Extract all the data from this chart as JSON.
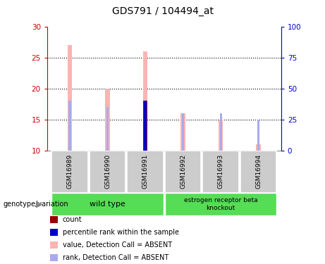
{
  "title": "GDS791 / 104494_at",
  "samples": [
    "GSM16989",
    "GSM16990",
    "GSM16991",
    "GSM16992",
    "GSM16993",
    "GSM16994"
  ],
  "ylim_left": [
    10,
    30
  ],
  "ylim_right": [
    0,
    100
  ],
  "yticks_left": [
    10,
    15,
    20,
    25,
    30
  ],
  "yticks_right": [
    0,
    25,
    50,
    75,
    100
  ],
  "value_bars": [
    27,
    20,
    26,
    16,
    15,
    11
  ],
  "value_bar_color": "#ffb3b3",
  "value_bar_width": 0.12,
  "rank_bars": [
    18,
    17,
    18,
    16,
    16,
    15
  ],
  "rank_bar_color": "#aaaaee",
  "rank_bar_width": 0.06,
  "count_bars": [
    0,
    0,
    18,
    0,
    0,
    0
  ],
  "count_bar_color": "#990000",
  "count_bar_width": 0.1,
  "percentile_bars": [
    0,
    0,
    18,
    0,
    0,
    0
  ],
  "percentile_bar_color": "#0000cc",
  "percentile_bar_width": 0.06,
  "bar_base": 10,
  "dotted_lines": [
    15,
    20,
    25
  ],
  "legend_items": [
    {
      "color": "#990000",
      "label": "count"
    },
    {
      "color": "#0000cc",
      "label": "percentile rank within the sample"
    },
    {
      "color": "#ffb3b3",
      "label": "value, Detection Call = ABSENT"
    },
    {
      "color": "#aaaaee",
      "label": "rank, Detection Call = ABSENT"
    }
  ],
  "left_axis_color": "#cc0000",
  "right_axis_color": "#0000cc",
  "sample_bg": "#cccccc",
  "wt_color": "#55dd55",
  "ko_color": "#55dd55"
}
